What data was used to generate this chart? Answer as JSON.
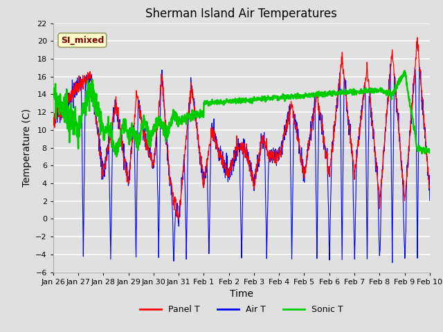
{
  "title": "Sherman Island Air Temperatures",
  "xlabel": "Time",
  "ylabel": "Temperature (C)",
  "bg_color": "#e0e0e0",
  "ylim": [
    -6,
    22
  ],
  "yticks": [
    -6,
    -4,
    -2,
    0,
    2,
    4,
    6,
    8,
    10,
    12,
    14,
    16,
    18,
    20,
    22
  ],
  "xtick_labels": [
    "Jan 26",
    "Jan 27",
    "Jan 28",
    "Jan 29",
    "Jan 30",
    "Jan 31",
    "Feb 1",
    "Feb 2",
    "Feb 3",
    "Feb 4",
    "Feb 5",
    "Feb 6",
    "Feb 7",
    "Feb 8",
    "Feb 9",
    "Feb 10"
  ],
  "legend_labels": [
    "Panel T",
    "Air T",
    "Sonic T"
  ],
  "line_colors": [
    "#ff0000",
    "#0000ff",
    "#00cc00"
  ],
  "annotation_text": "SI_mixed",
  "annotation_fg": "#800000",
  "annotation_bg": "#ffffcc",
  "annotation_border": "#999966",
  "title_fontsize": 12,
  "label_fontsize": 10,
  "tick_fontsize": 8,
  "legend_fontsize": 9
}
